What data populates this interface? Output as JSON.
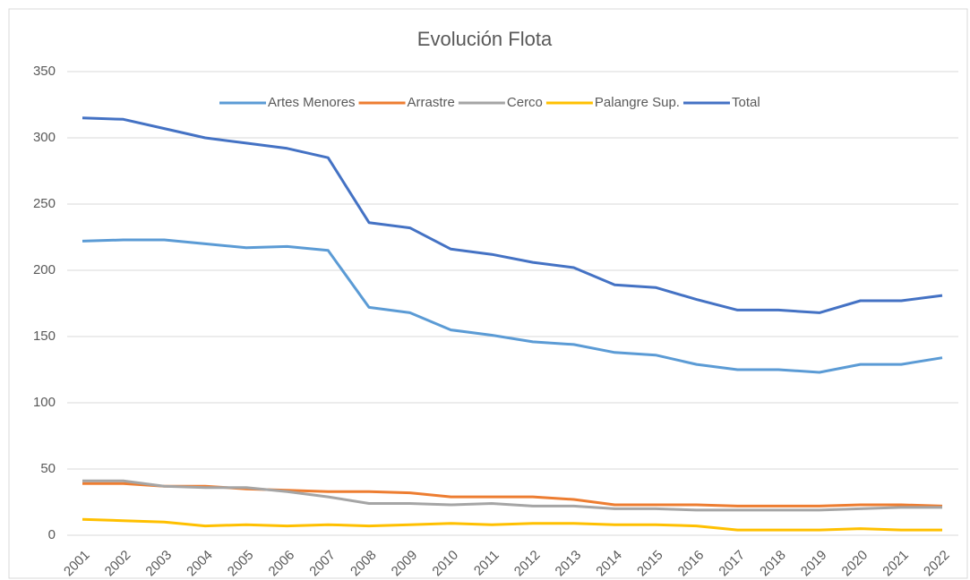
{
  "chart_data": {
    "type": "line",
    "title": "Evolución Flota",
    "categories": [
      "2001",
      "2002",
      "2003",
      "2004",
      "2005",
      "2006",
      "2007",
      "2008",
      "2009",
      "2010",
      "2011",
      "2012",
      "2013",
      "2014",
      "2015",
      "2016",
      "2017",
      "2018",
      "2019",
      "2020",
      "2021",
      "2022"
    ],
    "series": [
      {
        "name": "Artes Menores",
        "color": "#5b9bd5",
        "values": [
          222,
          223,
          223,
          220,
          217,
          218,
          215,
          172,
          168,
          155,
          151,
          146,
          144,
          138,
          136,
          129,
          125,
          125,
          123,
          129,
          129,
          134
        ]
      },
      {
        "name": "Arrastre",
        "color": "#ed7d31",
        "values": [
          39,
          39,
          37,
          37,
          35,
          34,
          33,
          33,
          32,
          29,
          29,
          29,
          27,
          23,
          23,
          23,
          22,
          22,
          22,
          23,
          23,
          22
        ]
      },
      {
        "name": "Cerco",
        "color": "#a5a5a5",
        "values": [
          41,
          41,
          37,
          36,
          36,
          33,
          29,
          24,
          24,
          23,
          24,
          22,
          22,
          20,
          20,
          19,
          19,
          19,
          19,
          20,
          21,
          21
        ]
      },
      {
        "name": "Palangre Sup.",
        "color": "#ffc000",
        "values": [
          12,
          11,
          10,
          7,
          8,
          7,
          8,
          7,
          8,
          9,
          8,
          9,
          9,
          8,
          8,
          7,
          4,
          4,
          4,
          5,
          4,
          4
        ]
      },
      {
        "name": "Total",
        "color": "#4472c4",
        "values": [
          315,
          314,
          307,
          300,
          296,
          292,
          285,
          236,
          232,
          216,
          212,
          206,
          202,
          189,
          187,
          178,
          170,
          170,
          168,
          177,
          177,
          181
        ]
      }
    ],
    "ylim": [
      0,
      350
    ],
    "yticks": [
      0,
      50,
      100,
      150,
      200,
      250,
      300,
      350
    ],
    "grid": true,
    "legend": "top"
  }
}
